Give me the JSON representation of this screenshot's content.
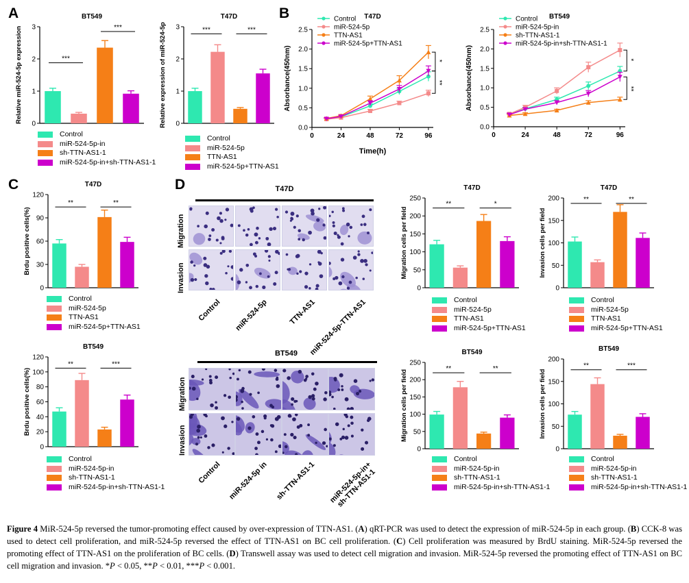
{
  "panel_letters": {
    "a": "A",
    "b": "B",
    "c": "C",
    "d": "D"
  },
  "colors": {
    "control": "#2ee8b0",
    "mir": "#f48a8a",
    "ttn": "#f57f17",
    "combo": "#cc00cc"
  },
  "chart_data": [
    {
      "id": "A1",
      "type": "bar",
      "title": "BT549",
      "ylabel": "Relative miR-524-5p expression",
      "ylim": [
        0,
        3
      ],
      "yticks": [
        0,
        1,
        2,
        3
      ],
      "categories": [
        "Control",
        "miR-524-5p-in",
        "sh-TTN-AS1-1",
        "miR-524-5p-in+sh-TTN-AS1-1"
      ],
      "values": [
        1.0,
        0.3,
        2.35,
        0.92
      ],
      "errors": [
        0.09,
        0.04,
        0.22,
        0.09
      ],
      "sig": [
        {
          "from": 0,
          "to": 1,
          "label": "***",
          "y": 1.88
        },
        {
          "from": 2,
          "to": 3,
          "label": "***",
          "y": 2.85
        }
      ]
    },
    {
      "id": "A2",
      "type": "bar",
      "title": "T47D",
      "ylabel": "Relative expression of miR-524-5p",
      "ylim": [
        0,
        3
      ],
      "yticks": [
        0,
        1,
        2,
        3
      ],
      "categories": [
        "Control",
        "miR-524-5p",
        "TTN-AS1",
        "miR-524-5p+TTN-AS1"
      ],
      "values": [
        1.0,
        2.22,
        0.45,
        1.55
      ],
      "errors": [
        0.09,
        0.22,
        0.04,
        0.13
      ],
      "sig": [
        {
          "from": 0,
          "to": 1,
          "label": "***",
          "y": 2.78
        },
        {
          "from": 2,
          "to": 3,
          "label": "***",
          "y": 2.78
        }
      ]
    },
    {
      "id": "B1",
      "type": "line",
      "title": "T47D",
      "xlabel": "Time(h)",
      "ylabel": "Absorbance(450nm)",
      "xlim": [
        0,
        100
      ],
      "xticks": [
        0,
        24,
        48,
        72,
        96
      ],
      "ylim": [
        0,
        2.5
      ],
      "yticks": [
        0,
        0.5,
        1.0,
        1.5,
        2.0,
        2.5
      ],
      "x": [
        12,
        24,
        48,
        72,
        96
      ],
      "series": [
        {
          "name": "Control",
          "values": [
            0.22,
            0.27,
            0.55,
            0.92,
            1.3
          ],
          "errors": [
            0.02,
            0.03,
            0.05,
            0.08,
            0.12
          ]
        },
        {
          "name": "miR-524-5p",
          "values": [
            0.21,
            0.25,
            0.42,
            0.62,
            0.87
          ],
          "errors": [
            0.02,
            0.02,
            0.04,
            0.05,
            0.08
          ]
        },
        {
          "name": "TTN-AS1",
          "values": [
            0.23,
            0.3,
            0.73,
            1.2,
            1.92
          ],
          "errors": [
            0.02,
            0.03,
            0.07,
            0.12,
            0.17
          ]
        },
        {
          "name": "miR-524-5p+TTN-AS1",
          "values": [
            0.22,
            0.28,
            0.62,
            0.98,
            1.44
          ],
          "errors": [
            0.02,
            0.03,
            0.06,
            0.09,
            0.13
          ]
        }
      ],
      "sig": [
        {
          "label": "*",
          "y1": 1.92,
          "y2": 1.44
        },
        {
          "label": "**",
          "y1": 1.44,
          "y2": 0.87
        }
      ]
    },
    {
      "id": "B2",
      "type": "line",
      "title": "BT549",
      "xlabel": "",
      "ylabel": "Absorbance(450nm)",
      "xlim": [
        0,
        100
      ],
      "xticks": [
        0,
        24,
        48,
        72,
        96
      ],
      "ylim": [
        0,
        2.5
      ],
      "yticks": [
        0,
        0.5,
        1.0,
        1.5,
        2.0,
        2.5
      ],
      "x": [
        12,
        24,
        48,
        72,
        96
      ],
      "series": [
        {
          "name": "Control",
          "values": [
            0.32,
            0.46,
            0.7,
            1.05,
            1.43
          ],
          "errors": [
            0.03,
            0.04,
            0.06,
            0.1,
            0.12
          ]
        },
        {
          "name": "miR-524-5p-in",
          "values": [
            0.33,
            0.5,
            0.92,
            1.53,
            1.97
          ],
          "errors": [
            0.03,
            0.05,
            0.08,
            0.13,
            0.18
          ]
        },
        {
          "name": "sh-TTN-AS1-1",
          "values": [
            0.29,
            0.33,
            0.42,
            0.62,
            0.7
          ],
          "errors": [
            0.03,
            0.03,
            0.03,
            0.05,
            0.06
          ]
        },
        {
          "name": "miR-524-5p-in+sh-TTN-AS1-1",
          "values": [
            0.31,
            0.45,
            0.62,
            0.85,
            1.28
          ],
          "errors": [
            0.03,
            0.04,
            0.05,
            0.08,
            0.12
          ]
        }
      ],
      "sig": [
        {
          "label": "*",
          "y1": 1.97,
          "y2": 1.43
        },
        {
          "label": "**",
          "y1": 1.28,
          "y2": 0.7
        }
      ]
    },
    {
      "id": "C1",
      "type": "bar",
      "title": "T47D",
      "ylabel": "Brdu positive cells(%)",
      "ylim": [
        0,
        120
      ],
      "yticks": [
        0,
        30,
        60,
        90,
        120
      ],
      "categories": [
        "Control",
        "miR-524-5p",
        "TTN-AS1",
        "miR-524-5p+TTN-AS1"
      ],
      "values": [
        57,
        27,
        91,
        59
      ],
      "errors": [
        5,
        3,
        9,
        6
      ],
      "sig": [
        {
          "from": 0,
          "to": 1,
          "label": "**",
          "y": 104
        },
        {
          "from": 2,
          "to": 3,
          "label": "**",
          "y": 104
        }
      ]
    },
    {
      "id": "C2",
      "type": "bar",
      "title": "BT549",
      "ylabel": "Brdu positive cells(%)",
      "ylim": [
        0,
        120
      ],
      "yticks": [
        0,
        20,
        40,
        60,
        80,
        100,
        120
      ],
      "categories": [
        "Control",
        "miR-524-5p-in",
        "sh-TTN-AS1-1",
        "miR-524-5p-in+sh-TTN-AS1-1"
      ],
      "values": [
        47,
        89,
        23,
        63
      ],
      "errors": [
        5,
        9,
        3,
        6
      ],
      "sig": [
        {
          "from": 0,
          "to": 1,
          "label": "**",
          "y": 105
        },
        {
          "from": 2,
          "to": 3,
          "label": "***",
          "y": 105
        }
      ]
    },
    {
      "id": "D1",
      "type": "bar",
      "title": "T47D",
      "ylabel": "Migration cells per field",
      "ylim": [
        0,
        250
      ],
      "yticks": [
        0,
        50,
        100,
        150,
        200,
        250
      ],
      "categories": [
        "Control",
        "miR-524-5p",
        "TTN-AS1",
        "miR-524-5p+TTN-AS1"
      ],
      "values": [
        121,
        56,
        186,
        130
      ],
      "errors": [
        11,
        5,
        18,
        12
      ],
      "sig": [
        {
          "from": 0,
          "to": 1,
          "label": "**",
          "y": 222
        },
        {
          "from": 2,
          "to": 3,
          "label": "*",
          "y": 222
        }
      ]
    },
    {
      "id": "D2",
      "type": "bar",
      "title": "T47D",
      "ylabel": "Invasion cells per field",
      "ylim": [
        0,
        200
      ],
      "yticks": [
        0,
        50,
        100,
        150,
        200
      ],
      "categories": [
        "Control",
        "miR-524-5p",
        "TTN-AS1",
        "miR-524-5p+TTN-AS1"
      ],
      "values": [
        103,
        57,
        169,
        111
      ],
      "errors": [
        10,
        5,
        16,
        11
      ],
      "sig": [
        {
          "from": 0,
          "to": 1,
          "label": "**",
          "y": 188
        },
        {
          "from": 2,
          "to": 3,
          "label": "**",
          "y": 188
        }
      ]
    },
    {
      "id": "D3",
      "type": "bar",
      "title": "BT549",
      "ylabel": "Migration cells per field",
      "ylim": [
        0,
        250
      ],
      "yticks": [
        0,
        50,
        100,
        150,
        200,
        250
      ],
      "categories": [
        "Control",
        "miR-524-5p-in",
        "sh-TTN-AS1-1",
        "miR-524-5p-in+sh-TTN-AS1-1"
      ],
      "values": [
        99,
        178,
        44,
        90
      ],
      "errors": [
        9,
        17,
        4,
        8
      ],
      "sig": [
        {
          "from": 0,
          "to": 1,
          "label": "**",
          "y": 220
        },
        {
          "from": 2,
          "to": 3,
          "label": "**",
          "y": 220
        }
      ]
    },
    {
      "id": "D4",
      "type": "bar",
      "title": "BT549",
      "ylabel": "Invasion cells per field",
      "ylim": [
        0,
        200
      ],
      "yticks": [
        0,
        50,
        100,
        150,
        200
      ],
      "categories": [
        "Control",
        "miR-524-5p-in",
        "sh-TTN-AS1-1",
        "miR-524-5p-in+sh-TTN-AS1-1"
      ],
      "values": [
        76,
        144,
        29,
        71
      ],
      "errors": [
        7,
        14,
        3,
        7
      ],
      "sig": [
        {
          "from": 0,
          "to": 1,
          "label": "**",
          "y": 176
        },
        {
          "from": 2,
          "to": 3,
          "label": "***",
          "y": 176
        }
      ]
    }
  ],
  "images": {
    "t47d": {
      "title": "T47D",
      "rows": [
        "Migration",
        "Invasion"
      ],
      "cols": [
        "Control",
        "miR-524-5p",
        "TTN-AS1",
        "miR-524-5p-TTN-AS1"
      ]
    },
    "bt549": {
      "title": "BT549",
      "rows": [
        "Migration",
        "Invasion"
      ],
      "cols": [
        "Control",
        "miR-524-5p in",
        "sh-TTN-AS1-1",
        "miR-524-5p-in+\nsh-TTN-AS1-1"
      ]
    }
  },
  "caption": {
    "label": "Figure 4",
    "text_1": " MiR-524-5p reversed the tumor-promoting effect caused by over-expression of TTN-AS1. (",
    "a": "A",
    "text_2": ") qRT-PCR was used to detect the expression of miR-524-5p in each group. (",
    "b": "B",
    "text_3": ") CCK-8 was used to detect cell proliferation, and miR-524-5p reversed the effect of TTN-AS1 on BC cell proliferation. (",
    "c": "C",
    "text_4": ") Cell proliferation was measured by BrdU staining. MiR-524-5p reversed the promoting effect of TTN-AS1 on the proliferation of BC cells. (",
    "d": "D",
    "text_5": ") Transwell assay was used to detect cell migration and invasion. MiR-524-5p reversed the promoting effect of TTN-AS1 on BC cell migration and invasion. *",
    "p1": "P",
    "text_6": " < 0.05, **",
    "p2": "P",
    "text_7": " < 0.01, ***",
    "p3": "P",
    "text_8": " < 0.001."
  }
}
